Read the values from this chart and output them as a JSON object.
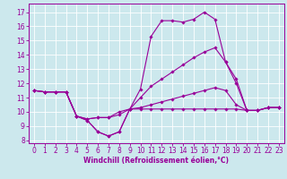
{
  "xlabel": "Windchill (Refroidissement éolien,°C)",
  "x": [
    0,
    1,
    2,
    3,
    4,
    5,
    6,
    7,
    8,
    9,
    10,
    11,
    12,
    13,
    14,
    15,
    16,
    17,
    18,
    19,
    20,
    21,
    22,
    23
  ],
  "y_top": [
    11.5,
    11.4,
    11.4,
    11.4,
    9.7,
    9.4,
    8.6,
    8.3,
    8.6,
    10.2,
    11.6,
    15.3,
    16.4,
    16.4,
    16.3,
    16.5,
    17.0,
    16.5,
    13.5,
    12.3,
    10.1,
    10.1,
    10.3,
    10.3
  ],
  "y_upper_mid": [
    11.5,
    11.4,
    11.4,
    11.4,
    9.7,
    9.5,
    9.6,
    9.6,
    9.8,
    10.2,
    11.0,
    11.8,
    12.3,
    12.8,
    13.3,
    13.8,
    14.2,
    14.5,
    13.5,
    12.0,
    10.1,
    10.1,
    10.3,
    10.3
  ],
  "y_lower_mid": [
    11.5,
    11.4,
    11.4,
    11.4,
    9.7,
    9.5,
    9.6,
    9.6,
    10.0,
    10.2,
    10.3,
    10.5,
    10.7,
    10.9,
    11.1,
    11.3,
    11.5,
    11.7,
    11.5,
    10.5,
    10.1,
    10.1,
    10.3,
    10.3
  ],
  "y_bot": [
    11.5,
    11.4,
    11.4,
    11.4,
    9.7,
    9.4,
    8.6,
    8.3,
    8.6,
    10.2,
    10.2,
    10.2,
    10.2,
    10.2,
    10.2,
    10.2,
    10.2,
    10.2,
    10.2,
    10.2,
    10.1,
    10.1,
    10.3,
    10.3
  ],
  "line_color": "#990099",
  "bg_color": "#cce8ed",
  "grid_color": "#ffffff",
  "ylim": [
    7.8,
    17.6
  ],
  "yticks": [
    8,
    9,
    10,
    11,
    12,
    13,
    14,
    15,
    16,
    17
  ],
  "xlim": [
    -0.5,
    23.5
  ],
  "xticks": [
    0,
    1,
    2,
    3,
    4,
    5,
    6,
    7,
    8,
    9,
    10,
    11,
    12,
    13,
    14,
    15,
    16,
    17,
    18,
    19,
    20,
    21,
    22,
    23
  ],
  "tick_fontsize": 5.5,
  "xlabel_fontsize": 5.5
}
